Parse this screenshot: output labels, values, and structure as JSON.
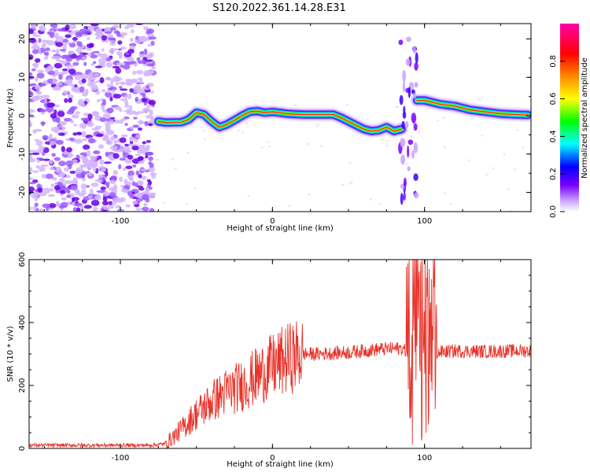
{
  "title": "S120.2022.361.14.28.E31",
  "chart_data": [
    {
      "type": "heatmap",
      "xlabel": "Height of straight line (km)",
      "ylabel": "Frequency (Hz)",
      "xlim": [
        -160,
        170
      ],
      "ylim": [
        -25,
        24
      ],
      "x_ticks": [
        -100,
        0,
        100
      ],
      "y_ticks": [
        -20,
        -10,
        0,
        10,
        20
      ],
      "colorbar": {
        "label": "Normalized spectral amplitude",
        "range": [
          0,
          1
        ],
        "ticks": [
          "0.0",
          "0.2",
          "0.4",
          "0.6",
          "0.8"
        ],
        "colors": [
          "#ffffff",
          "#7b00ff",
          "#0000ff",
          "#00ffff",
          "#00ff00",
          "#ffff00",
          "#ff8800",
          "#ff0000",
          "#ff00aa"
        ]
      },
      "ridge": {
        "x": [
          -75,
          -70,
          -60,
          -55,
          -50,
          -45,
          -40,
          -35,
          -30,
          -25,
          -20,
          -15,
          -10,
          -5,
          0,
          10,
          20,
          30,
          40,
          45,
          50,
          55,
          60,
          65,
          70,
          75,
          80,
          85,
          95,
          100,
          110,
          120,
          130,
          140,
          150,
          160,
          168
        ],
        "y": [
          -1.5,
          -1.8,
          -1.7,
          -1,
          0.8,
          0.3,
          -1.5,
          -3,
          -2.3,
          -1.2,
          0,
          1,
          1.2,
          0.8,
          1,
          0.5,
          0.3,
          0.3,
          0.3,
          -0.5,
          -1.5,
          -2.5,
          -3.5,
          -4,
          -3.8,
          -3,
          -4,
          -3.5,
          4,
          4,
          3,
          2.5,
          1.5,
          1,
          0.5,
          0.3,
          0.2
        ]
      },
      "noise_region_x": [
        -160,
        -78
      ]
    },
    {
      "type": "line",
      "xlabel": "Height of straight line (km)",
      "ylabel": "SNR (10 * v/v)",
      "xlim": [
        -160,
        170
      ],
      "ylim": [
        0,
        600
      ],
      "x_ticks": [
        -100,
        0,
        100
      ],
      "y_ticks": [
        0,
        200,
        400,
        600
      ],
      "color": "#e8332a",
      "envelope": {
        "x": [
          -160,
          -120,
          -80,
          -70,
          -60,
          -50,
          -40,
          -30,
          -20,
          -10,
          0,
          10,
          20,
          30,
          50,
          70,
          85,
          90,
          95,
          100,
          105,
          110,
          120,
          140,
          160,
          170
        ],
        "y": [
          10,
          10,
          10,
          15,
          60,
          110,
          150,
          180,
          200,
          230,
          260,
          285,
          300,
          300,
          305,
          315,
          318,
          300,
          280,
          300,
          300,
          305,
          310,
          308,
          310,
          310
        ]
      }
    }
  ]
}
